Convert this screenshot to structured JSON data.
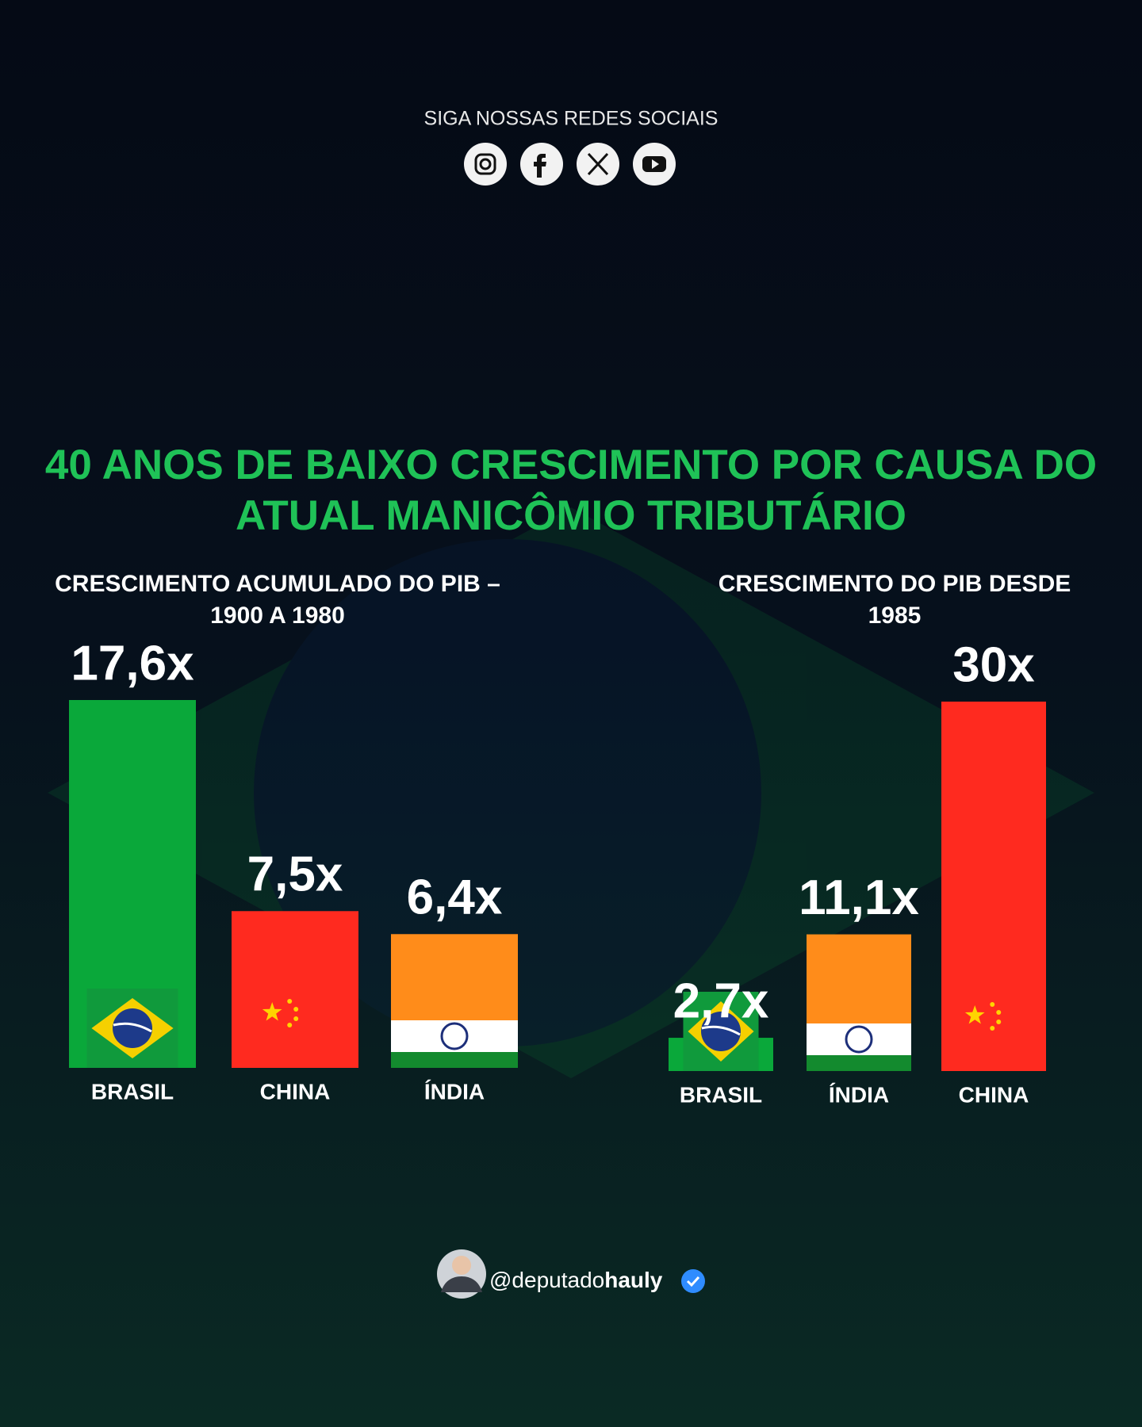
{
  "header": {
    "social": "SIGA NOSSAS REDES SOCIAIS"
  },
  "title": [
    "40 ANOS DE BAIXO CRESCIMENTO POR CAUSA DO",
    "ATUAL MANICÔMIO TRIBUTÁRIO"
  ],
  "chart_data": [
    {
      "type": "bar",
      "subtitle": [
        "CRESCIMENTO ACUMULADO DO PIB –",
        "1900 A 1980"
      ],
      "categories": [
        "BRASIL",
        "CHINA",
        "ÍNDIA"
      ],
      "values": [
        17.6,
        7.5,
        6.4
      ],
      "value_labels": [
        "17,6x",
        "7,5x",
        "6,4x"
      ],
      "colors": [
        "#0aa83a",
        "#ff2a1f",
        "#ff8c1a"
      ]
    },
    {
      "type": "bar",
      "subtitle": [
        "CRESCIMENTO DO PIB DESDE",
        "1985"
      ],
      "categories": [
        "BRASIL",
        "ÍNDIA",
        "CHINA"
      ],
      "values": [
        2.7,
        11.1,
        30
      ],
      "value_labels": [
        "2,7x",
        "11,1x",
        "30x"
      ],
      "colors": [
        "#0aa83a",
        "#ff8c1a",
        "#ff2a1f"
      ]
    }
  ],
  "footer": {
    "handle": [
      "@deputado",
      "hauly"
    ]
  }
}
